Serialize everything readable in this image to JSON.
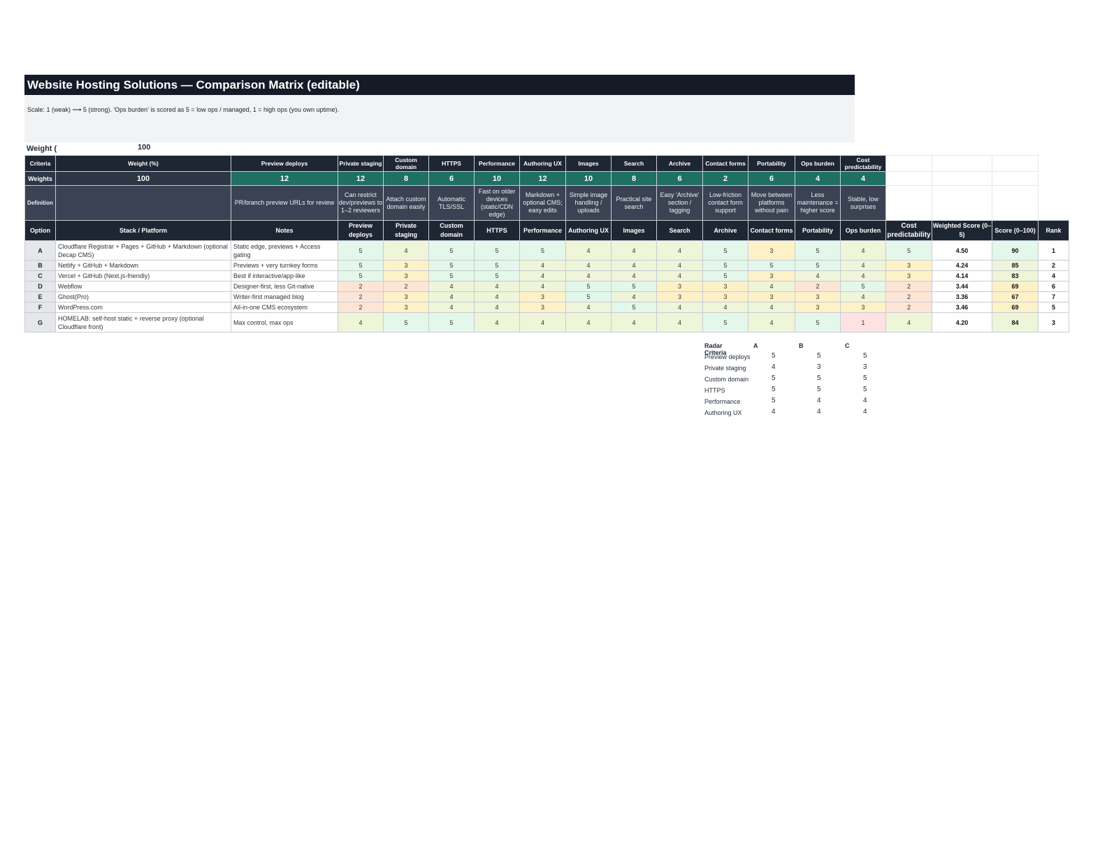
{
  "title": "Website Hosting Solutions — Comparison Matrix (editable)",
  "scale_note": "Scale: 1 (weak) ⟶ 5 (strong). 'Ops burden' is scored as 5 = low ops / managed, 1 = high ops (you own uptime).",
  "weight_total": {
    "label": "Weight (",
    "value": "100"
  },
  "criteria_row": {
    "label": "Criteria",
    "weight_col": "Weight (%)",
    "items": [
      "Preview deploys",
      "Private staging",
      "Custom domain",
      "HTTPS",
      "Performance",
      "Authoring UX",
      "Images",
      "Search",
      "Archive",
      "Contact forms",
      "Portability",
      "Ops burden",
      "Cost predictability"
    ]
  },
  "weights_row": {
    "label": "Weights",
    "total": "100",
    "values": [
      "12",
      "12",
      "8",
      "6",
      "10",
      "12",
      "10",
      "8",
      "6",
      "2",
      "6",
      "4",
      "4"
    ]
  },
  "definition_row": {
    "label": "Definition",
    "items": [
      "PR/branch preview URLs for review",
      "Can restrict dev/previews to 1–2 reviewers",
      "Attach custom domain easily",
      "Automatic TLS/SSL",
      "Fast on older devices (static/CDN edge)",
      "Markdown + optional CMS; easy edits",
      "Simple image handling / uploads",
      "Practical site search",
      "Easy 'Archive' section / tagging",
      "Low-friction contact form support",
      "Move between platforms without pain",
      "Less maintenance = higher score",
      "Stable, low surprises"
    ]
  },
  "table_header": [
    "Option",
    "Stack / Platform",
    "Notes",
    "Preview deploys",
    "Private staging",
    "Custom domain",
    "HTTPS",
    "Performance",
    "Authoring UX",
    "Images",
    "Search",
    "Archive",
    "Contact forms",
    "Portability",
    "Ops burden",
    "Cost predictability",
    "Weighted Score (0–5)",
    "Score (0–100)",
    "Rank"
  ],
  "rows": [
    {
      "option": "A",
      "stack": "Cloudflare Registrar + Pages + GitHub + Markdown (optional Decap CMS)",
      "notes": "Static edge, previews + Access gating",
      "scores": [
        "5",
        "4",
        "5",
        "5",
        "5",
        "4",
        "4",
        "4",
        "5",
        "3",
        "5",
        "4",
        "5"
      ],
      "weighted": "4.50",
      "score": "90",
      "rank": "1"
    },
    {
      "option": "B",
      "stack": "Netlify + GitHub + Markdown",
      "notes": "Previews + very turnkey forms",
      "scores": [
        "5",
        "3",
        "5",
        "5",
        "4",
        "4",
        "4",
        "4",
        "5",
        "5",
        "5",
        "4",
        "3"
      ],
      "weighted": "4.24",
      "score": "85",
      "rank": "2"
    },
    {
      "option": "C",
      "stack": "Vercel + GitHub (Next.js-friendly)",
      "notes": "Best if interactive/app-like",
      "scores": [
        "5",
        "3",
        "5",
        "5",
        "4",
        "4",
        "4",
        "4",
        "5",
        "3",
        "4",
        "4",
        "3"
      ],
      "weighted": "4.14",
      "score": "83",
      "rank": "4"
    },
    {
      "option": "D",
      "stack": "Webflow",
      "notes": "Designer-first, less Git-native",
      "scores": [
        "2",
        "2",
        "4",
        "4",
        "4",
        "5",
        "5",
        "3",
        "3",
        "4",
        "2",
        "5",
        "2"
      ],
      "weighted": "3.44",
      "score": "69",
      "rank": "6"
    },
    {
      "option": "E",
      "stack": "Ghost(Pro)",
      "notes": "Writer-first managed blog",
      "scores": [
        "2",
        "3",
        "4",
        "4",
        "3",
        "5",
        "4",
        "3",
        "3",
        "3",
        "3",
        "4",
        "2"
      ],
      "weighted": "3.36",
      "score": "67",
      "rank": "7"
    },
    {
      "option": "F",
      "stack": "WordPress.com",
      "notes": "All-in-one CMS ecosystem",
      "scores": [
        "2",
        "3",
        "4",
        "4",
        "3",
        "4",
        "5",
        "4",
        "4",
        "4",
        "3",
        "3",
        "2"
      ],
      "weighted": "3.46",
      "score": "69",
      "rank": "5"
    },
    {
      "option": "G",
      "stack": "HOMELAB: self-host static + reverse proxy (optional Cloudflare front)",
      "notes": "Max control, max ops",
      "scores": [
        "4",
        "5",
        "5",
        "4",
        "4",
        "4",
        "4",
        "4",
        "5",
        "4",
        "5",
        "1",
        "4"
      ],
      "weighted": "4.20",
      "score": "84",
      "rank": "3"
    }
  ],
  "score_column_shades": [
    "c5",
    "c4",
    "c4",
    "c3",
    "c3",
    "c3",
    "c4"
  ],
  "radar": {
    "header": "Radar Criteria",
    "columns": [
      "A",
      "B",
      "C"
    ],
    "rows": [
      {
        "label": "Preview deploys",
        "values": [
          "5",
          "5",
          "5"
        ]
      },
      {
        "label": "Private staging",
        "values": [
          "4",
          "3",
          "3"
        ]
      },
      {
        "label": "Custom domain",
        "values": [
          "5",
          "5",
          "5"
        ]
      },
      {
        "label": "HTTPS",
        "values": [
          "5",
          "5",
          "5"
        ]
      },
      {
        "label": "Performance",
        "values": [
          "5",
          "4",
          "4"
        ]
      },
      {
        "label": "Authoring UX",
        "values": [
          "4",
          "4",
          "4"
        ]
      }
    ]
  }
}
